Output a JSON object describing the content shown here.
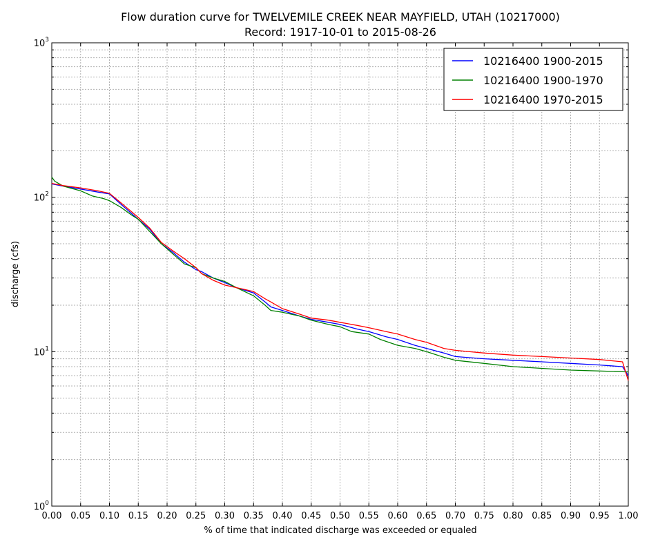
{
  "chart_data": {
    "type": "line",
    "title": "Flow duration curve for TWELVEMILE CREEK NEAR MAYFIELD, UTAH (10217000)",
    "subtitle": "Record: 1917-10-01 to 2015-08-26",
    "xlabel": "% of time that indicated discharge was exceeded or equaled",
    "ylabel": "discharge (cfs)",
    "xlim": [
      0.0,
      1.0
    ],
    "ylim": [
      1,
      1000
    ],
    "yscale": "log",
    "grid": true,
    "legend_position": "top-right",
    "x_ticks": [
      "0.00",
      "0.05",
      "0.10",
      "0.15",
      "0.20",
      "0.25",
      "0.30",
      "0.35",
      "0.40",
      "0.45",
      "0.50",
      "0.55",
      "0.60",
      "0.65",
      "0.70",
      "0.75",
      "0.80",
      "0.85",
      "0.90",
      "0.95",
      "1.00"
    ],
    "y_ticks": [
      {
        "base": "10",
        "exp": "0",
        "value": 1
      },
      {
        "base": "10",
        "exp": "1",
        "value": 10
      },
      {
        "base": "10",
        "exp": "2",
        "value": 100
      },
      {
        "base": "10",
        "exp": "3",
        "value": 1000
      }
    ],
    "series": [
      {
        "name": "10216400 1900-2015",
        "color": "#0000ff",
        "points": [
          [
            0.0,
            122
          ],
          [
            0.02,
            118
          ],
          [
            0.05,
            113
          ],
          [
            0.08,
            108
          ],
          [
            0.1,
            105
          ],
          [
            0.12,
            90
          ],
          [
            0.15,
            72
          ],
          [
            0.17,
            62
          ],
          [
            0.19,
            50
          ],
          [
            0.21,
            44
          ],
          [
            0.23,
            38
          ],
          [
            0.25,
            34
          ],
          [
            0.26,
            33
          ],
          [
            0.28,
            30
          ],
          [
            0.3,
            28
          ],
          [
            0.32,
            26
          ],
          [
            0.35,
            24
          ],
          [
            0.37,
            21
          ],
          [
            0.38,
            19.5
          ],
          [
            0.4,
            18.5
          ],
          [
            0.43,
            17
          ],
          [
            0.45,
            16.2
          ],
          [
            0.48,
            15.5
          ],
          [
            0.5,
            15
          ],
          [
            0.53,
            14
          ],
          [
            0.55,
            13.5
          ],
          [
            0.58,
            12.5
          ],
          [
            0.6,
            12
          ],
          [
            0.63,
            11
          ],
          [
            0.65,
            10.5
          ],
          [
            0.68,
            9.8
          ],
          [
            0.7,
            9.3
          ],
          [
            0.75,
            9.0
          ],
          [
            0.8,
            8.8
          ],
          [
            0.85,
            8.6
          ],
          [
            0.9,
            8.4
          ],
          [
            0.95,
            8.2
          ],
          [
            0.99,
            8.0
          ],
          [
            1.0,
            7.0
          ]
        ]
      },
      {
        "name": "10216400 1900-1970",
        "color": "#008000",
        "points": [
          [
            0.0,
            135
          ],
          [
            0.005,
            127
          ],
          [
            0.02,
            118
          ],
          [
            0.05,
            110
          ],
          [
            0.07,
            102
          ],
          [
            0.09,
            98
          ],
          [
            0.1,
            95
          ],
          [
            0.12,
            86
          ],
          [
            0.14,
            76
          ],
          [
            0.15,
            72
          ],
          [
            0.17,
            60
          ],
          [
            0.19,
            50
          ],
          [
            0.21,
            43
          ],
          [
            0.23,
            37
          ],
          [
            0.25,
            35
          ],
          [
            0.26,
            32
          ],
          [
            0.28,
            30
          ],
          [
            0.3,
            28.5
          ],
          [
            0.32,
            26
          ],
          [
            0.35,
            23
          ],
          [
            0.37,
            20
          ],
          [
            0.38,
            18.5
          ],
          [
            0.4,
            18
          ],
          [
            0.43,
            17
          ],
          [
            0.45,
            16
          ],
          [
            0.48,
            15
          ],
          [
            0.5,
            14.5
          ],
          [
            0.52,
            13.5
          ],
          [
            0.55,
            13
          ],
          [
            0.57,
            12
          ],
          [
            0.6,
            11
          ],
          [
            0.63,
            10.5
          ],
          [
            0.65,
            10
          ],
          [
            0.68,
            9.2
          ],
          [
            0.7,
            8.8
          ],
          [
            0.75,
            8.4
          ],
          [
            0.8,
            8.0
          ],
          [
            0.85,
            7.8
          ],
          [
            0.9,
            7.6
          ],
          [
            0.95,
            7.5
          ],
          [
            1.0,
            7.4
          ]
        ]
      },
      {
        "name": "10216400 1970-2015",
        "color": "#ff0000",
        "points": [
          [
            0.0,
            123
          ],
          [
            0.02,
            119
          ],
          [
            0.05,
            115
          ],
          [
            0.08,
            110
          ],
          [
            0.1,
            106
          ],
          [
            0.12,
            92
          ],
          [
            0.15,
            74
          ],
          [
            0.17,
            63
          ],
          [
            0.19,
            51
          ],
          [
            0.21,
            45
          ],
          [
            0.23,
            40
          ],
          [
            0.25,
            35
          ],
          [
            0.26,
            32
          ],
          [
            0.28,
            29
          ],
          [
            0.3,
            27
          ],
          [
            0.33,
            25.5
          ],
          [
            0.35,
            24.5
          ],
          [
            0.37,
            22
          ],
          [
            0.38,
            21
          ],
          [
            0.4,
            19
          ],
          [
            0.43,
            17.5
          ],
          [
            0.45,
            16.5
          ],
          [
            0.48,
            16
          ],
          [
            0.5,
            15.5
          ],
          [
            0.53,
            14.8
          ],
          [
            0.55,
            14.3
          ],
          [
            0.58,
            13.5
          ],
          [
            0.6,
            13
          ],
          [
            0.63,
            12
          ],
          [
            0.65,
            11.5
          ],
          [
            0.68,
            10.5
          ],
          [
            0.7,
            10.2
          ],
          [
            0.75,
            9.8
          ],
          [
            0.8,
            9.5
          ],
          [
            0.85,
            9.3
          ],
          [
            0.9,
            9.1
          ],
          [
            0.95,
            8.9
          ],
          [
            0.99,
            8.6
          ],
          [
            1.0,
            6.5
          ]
        ]
      }
    ]
  }
}
